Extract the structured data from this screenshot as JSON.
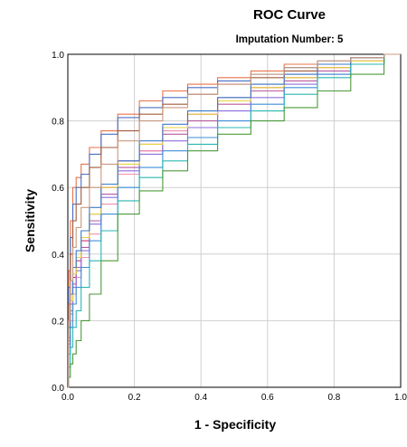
{
  "chart_data": {
    "type": "line",
    "title": "ROC Curve",
    "subtitle": "Imputation Number: 5",
    "xlabel": "1 - Specificity",
    "ylabel": "Sensitivity",
    "xlim": [
      0,
      1
    ],
    "ylim": [
      0,
      1
    ],
    "xticks": [
      "0.0",
      "0.2",
      "0.4",
      "0.6",
      "0.8",
      "1.0"
    ],
    "yticks": [
      "0.0",
      "0.2",
      "0.4",
      "0.6",
      "0.8",
      "1.0"
    ],
    "grid": true,
    "legend": "none",
    "series": [
      {
        "color": "#e8734a",
        "x": [
          0,
          0.005,
          0.01,
          0.02,
          0.03,
          0.05,
          0.08,
          0.12,
          0.18,
          0.25,
          0.32,
          0.4,
          0.5,
          0.6,
          0.7,
          0.8,
          0.9,
          1
        ],
        "y": [
          0,
          0.35,
          0.5,
          0.6,
          0.63,
          0.67,
          0.72,
          0.77,
          0.82,
          0.86,
          0.89,
          0.91,
          0.93,
          0.95,
          0.97,
          0.98,
          0.99,
          1
        ]
      },
      {
        "color": "#4a6fc4",
        "x": [
          0,
          0.005,
          0.01,
          0.02,
          0.03,
          0.05,
          0.08,
          0.12,
          0.18,
          0.25,
          0.32,
          0.4,
          0.5,
          0.6,
          0.7,
          0.8,
          0.9,
          1
        ],
        "y": [
          0,
          0.3,
          0.45,
          0.55,
          0.6,
          0.64,
          0.7,
          0.76,
          0.81,
          0.84,
          0.87,
          0.9,
          0.92,
          0.94,
          0.96,
          0.98,
          0.99,
          1
        ]
      },
      {
        "color": "#a35a3a",
        "x": [
          0,
          0.005,
          0.01,
          0.02,
          0.03,
          0.05,
          0.08,
          0.12,
          0.18,
          0.25,
          0.32,
          0.4,
          0.5,
          0.6,
          0.7,
          0.8,
          0.9,
          1
        ],
        "y": [
          0,
          0.25,
          0.4,
          0.5,
          0.55,
          0.6,
          0.66,
          0.72,
          0.77,
          0.82,
          0.85,
          0.88,
          0.91,
          0.93,
          0.95,
          0.97,
          0.99,
          1
        ]
      },
      {
        "color": "#d62f78",
        "x": [
          0,
          0.005,
          0.01,
          0.02,
          0.03,
          0.05,
          0.08,
          0.12,
          0.18,
          0.25,
          0.32,
          0.4,
          0.5,
          0.6,
          0.7,
          0.8,
          0.9,
          1
        ],
        "y": [
          0,
          0.15,
          0.25,
          0.33,
          0.38,
          0.44,
          0.52,
          0.6,
          0.68,
          0.73,
          0.78,
          0.82,
          0.86,
          0.9,
          0.93,
          0.96,
          0.98,
          1
        ]
      },
      {
        "color": "#b85a9e",
        "x": [
          0,
          0.005,
          0.01,
          0.02,
          0.03,
          0.05,
          0.08,
          0.12,
          0.18,
          0.25,
          0.32,
          0.4,
          0.5,
          0.6,
          0.7,
          0.8,
          0.9,
          1
        ],
        "y": [
          0,
          0.14,
          0.23,
          0.31,
          0.36,
          0.42,
          0.5,
          0.58,
          0.66,
          0.71,
          0.76,
          0.8,
          0.85,
          0.89,
          0.92,
          0.95,
          0.98,
          1
        ]
      },
      {
        "color": "#f28fb0",
        "x": [
          0,
          0.005,
          0.01,
          0.02,
          0.03,
          0.05,
          0.08,
          0.12,
          0.18,
          0.25,
          0.32,
          0.4,
          0.5,
          0.6,
          0.7,
          0.8,
          0.9,
          1
        ],
        "y": [
          0,
          0.12,
          0.2,
          0.28,
          0.33,
          0.39,
          0.46,
          0.55,
          0.64,
          0.71,
          0.77,
          0.82,
          0.87,
          0.91,
          0.94,
          0.97,
          0.99,
          1
        ]
      },
      {
        "color": "#8c6ee0",
        "x": [
          0,
          0.005,
          0.01,
          0.02,
          0.03,
          0.05,
          0.08,
          0.12,
          0.18,
          0.25,
          0.32,
          0.4,
          0.5,
          0.6,
          0.7,
          0.8,
          0.9,
          1
        ],
        "y": [
          0,
          0.13,
          0.22,
          0.3,
          0.35,
          0.41,
          0.49,
          0.57,
          0.65,
          0.7,
          0.74,
          0.78,
          0.83,
          0.87,
          0.91,
          0.94,
          0.97,
          1
        ]
      },
      {
        "color": "#e6d340",
        "x": [
          0,
          0.005,
          0.01,
          0.02,
          0.03,
          0.05,
          0.08,
          0.12,
          0.18,
          0.25,
          0.32,
          0.4,
          0.5,
          0.6,
          0.7,
          0.8,
          0.9,
          1
        ],
        "y": [
          0,
          0.16,
          0.26,
          0.34,
          0.39,
          0.45,
          0.52,
          0.6,
          0.67,
          0.73,
          0.78,
          0.82,
          0.86,
          0.9,
          0.93,
          0.96,
          0.98,
          1
        ]
      },
      {
        "color": "#3f8fd8",
        "x": [
          0,
          0.005,
          0.01,
          0.02,
          0.03,
          0.05,
          0.08,
          0.12,
          0.18,
          0.25,
          0.32,
          0.4,
          0.5,
          0.6,
          0.7,
          0.8,
          0.9,
          1
        ],
        "y": [
          0,
          0.1,
          0.18,
          0.25,
          0.3,
          0.36,
          0.44,
          0.52,
          0.6,
          0.66,
          0.71,
          0.75,
          0.8,
          0.85,
          0.9,
          0.94,
          0.97,
          1
        ]
      },
      {
        "color": "#2ab7b0",
        "x": [
          0,
          0.005,
          0.01,
          0.02,
          0.03,
          0.05,
          0.08,
          0.12,
          0.18,
          0.25,
          0.32,
          0.4,
          0.5,
          0.6,
          0.7,
          0.8,
          0.9,
          1
        ],
        "y": [
          0,
          0.06,
          0.12,
          0.18,
          0.23,
          0.3,
          0.38,
          0.47,
          0.56,
          0.63,
          0.68,
          0.73,
          0.78,
          0.83,
          0.88,
          0.93,
          0.97,
          1
        ]
      },
      {
        "color": "#4c9a3a",
        "x": [
          0,
          0.005,
          0.01,
          0.02,
          0.03,
          0.05,
          0.08,
          0.12,
          0.18,
          0.25,
          0.32,
          0.4,
          0.5,
          0.6,
          0.7,
          0.8,
          0.9,
          1
        ],
        "y": [
          0,
          0.03,
          0.07,
          0.1,
          0.14,
          0.2,
          0.28,
          0.38,
          0.52,
          0.59,
          0.65,
          0.71,
          0.76,
          0.8,
          0.84,
          0.89,
          0.94,
          1
        ]
      },
      {
        "color": "#3a7ac8",
        "x": [
          0,
          0.005,
          0.01,
          0.02,
          0.03,
          0.05,
          0.08,
          0.12,
          0.18,
          0.25,
          0.32,
          0.4,
          0.5,
          0.6,
          0.7,
          0.8,
          0.9,
          1
        ],
        "y": [
          0,
          0.18,
          0.28,
          0.36,
          0.41,
          0.47,
          0.54,
          0.61,
          0.68,
          0.74,
          0.79,
          0.83,
          0.87,
          0.91,
          0.94,
          0.97,
          0.99,
          1
        ]
      },
      {
        "color": "#c89a80",
        "x": [
          0,
          0.005,
          0.01,
          0.02,
          0.03,
          0.05,
          0.08,
          0.12,
          0.18,
          0.25,
          0.32,
          0.4,
          0.5,
          0.6,
          0.7,
          0.8,
          0.9,
          1
        ],
        "y": [
          0,
          0.2,
          0.32,
          0.42,
          0.48,
          0.54,
          0.6,
          0.67,
          0.74,
          0.8,
          0.84,
          0.88,
          0.91,
          0.94,
          0.96,
          0.98,
          0.99,
          1
        ]
      }
    ]
  }
}
